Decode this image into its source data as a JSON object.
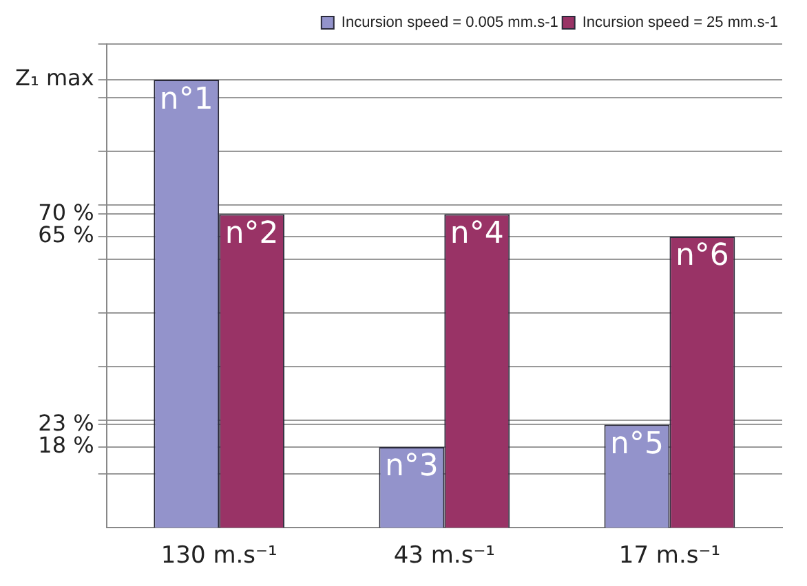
{
  "chart_data": {
    "type": "bar",
    "categories": [
      "130 m.s⁻¹",
      "43 m.s⁻¹",
      "17 m.s⁻¹"
    ],
    "series": [
      {
        "name": "Incursion speed = 0.005 mm.s-1",
        "color": "#9393cb",
        "values": [
          100,
          18,
          23
        ]
      },
      {
        "name": "Incursion speed = 25 mm.s-1",
        "color": "#993366",
        "values": [
          70,
          70,
          65
        ]
      }
    ],
    "annotations": [
      {
        "text": "n°1",
        "x": "130 m.s⁻¹",
        "y": 100
      },
      {
        "text": "n°2",
        "x": "130 m.s⁻¹",
        "y": 70
      },
      {
        "text": "n°3",
        "x": "43 m.s⁻¹",
        "y": 18
      },
      {
        "text": "n°4",
        "x": "43 m.s⁻¹",
        "y": 70
      },
      {
        "text": "n°5",
        "x": "17 m.s⁻¹",
        "y": 23
      },
      {
        "text": "n°6",
        "x": "17 m.s⁻¹",
        "y": 65
      }
    ],
    "ylim": [
      0,
      108
    ],
    "yticks": [
      {
        "value": 12,
        "label": null
      },
      {
        "value": 18,
        "label": "18 %"
      },
      {
        "value": 23,
        "label": "23 %"
      },
      {
        "value": 24,
        "label": null
      },
      {
        "value": 36,
        "label": null
      },
      {
        "value": 48,
        "label": null
      },
      {
        "value": 60,
        "label": null
      },
      {
        "value": 65,
        "label": "65 %"
      },
      {
        "value": 70,
        "label": "70 %"
      },
      {
        "value": 72,
        "label": null
      },
      {
        "value": 84,
        "label": null
      },
      {
        "value": 96,
        "label": null
      },
      {
        "value": 100,
        "label": "Z₁ max"
      },
      {
        "value": 108,
        "label": null
      }
    ],
    "grid": "y",
    "legend": "top right"
  }
}
